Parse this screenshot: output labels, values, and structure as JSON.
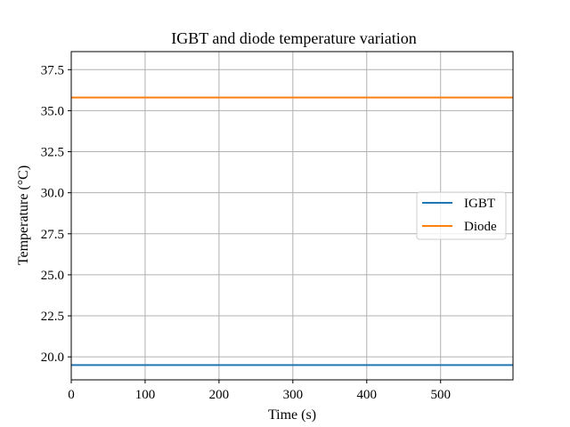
{
  "chart_data": {
    "type": "line",
    "title": "IGBT and diode temperature variation",
    "xlabel": "Time (s)",
    "ylabel": "Temperature (°C)",
    "xlim": [
      0,
      598
    ],
    "ylim": [
      18.6,
      38.6
    ],
    "xticks": [
      0,
      100,
      200,
      300,
      400,
      500
    ],
    "xtick_labels": [
      "0",
      "100",
      "200",
      "300",
      "400",
      "500"
    ],
    "yticks": [
      20.0,
      22.5,
      25.0,
      27.5,
      30.0,
      32.5,
      35.0,
      37.5
    ],
    "ytick_labels": [
      "20.0",
      "22.5",
      "25.0",
      "27.5",
      "30.0",
      "32.5",
      "35.0",
      "37.5"
    ],
    "grid": true,
    "legend_position": "center-right",
    "series": [
      {
        "name": "IGBT",
        "color": "#1f77b4",
        "x": [
          0,
          598
        ],
        "y": [
          19.5,
          19.5
        ]
      },
      {
        "name": "Diode",
        "color": "#ff7f0e",
        "x": [
          0,
          598
        ],
        "y": [
          35.8,
          35.8
        ]
      }
    ]
  }
}
